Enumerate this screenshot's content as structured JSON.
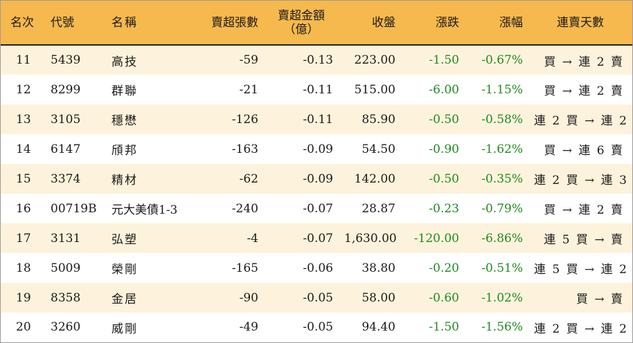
{
  "columns": {
    "rank": "名次",
    "code": "代號",
    "name": "名稱",
    "net_sell_lots": "賣超張數",
    "net_sell_amount": "賣超金額",
    "net_sell_amount_unit": "（億）",
    "close": "收盤",
    "change": "漲跌",
    "change_pct": "漲幅",
    "streak": "連賣天數"
  },
  "rows": [
    {
      "rank": "11",
      "code": "5439",
      "name": "高技",
      "lots": "-59",
      "amount": "-0.13",
      "close": "223.00",
      "change": "-1.50",
      "pct": "-0.67%",
      "streak": "買 → 連 2 賣"
    },
    {
      "rank": "12",
      "code": "8299",
      "name": "群聯",
      "lots": "-21",
      "amount": "-0.11",
      "close": "515.00",
      "change": "-6.00",
      "pct": "-1.15%",
      "streak": "買 → 連 2 賣"
    },
    {
      "rank": "13",
      "code": "3105",
      "name": "穩懋",
      "lots": "-126",
      "amount": "-0.11",
      "close": "85.90",
      "change": "-0.50",
      "pct": "-0.58%",
      "streak": "連 2 買 → 連 2 賣"
    },
    {
      "rank": "14",
      "code": "6147",
      "name": "頎邦",
      "lots": "-163",
      "amount": "-0.09",
      "close": "54.50",
      "change": "-0.90",
      "pct": "-1.62%",
      "streak": "買 → 連 6 賣"
    },
    {
      "rank": "15",
      "code": "3374",
      "name": "精材",
      "lots": "-62",
      "amount": "-0.09",
      "close": "142.00",
      "change": "-0.50",
      "pct": "-0.35%",
      "streak": "連 2 買 → 連 3 賣"
    },
    {
      "rank": "16",
      "code": "00719B",
      "name": "元大美債1-3",
      "lots": "-240",
      "amount": "-0.07",
      "close": "28.87",
      "change": "-0.23",
      "pct": "-0.79%",
      "streak": "買 → 連 2 賣"
    },
    {
      "rank": "17",
      "code": "3131",
      "name": "弘塑",
      "lots": "-4",
      "amount": "-0.07",
      "close": "1,630.00",
      "change": "-120.00",
      "pct": "-6.86%",
      "streak": "連 5 買 → 賣"
    },
    {
      "rank": "18",
      "code": "5009",
      "name": "榮剛",
      "lots": "-165",
      "amount": "-0.06",
      "close": "38.80",
      "change": "-0.20",
      "pct": "-0.51%",
      "streak": "連 5 買 → 連 2 賣"
    },
    {
      "rank": "19",
      "code": "8358",
      "name": "金居",
      "lots": "-90",
      "amount": "-0.05",
      "close": "58.00",
      "change": "-0.60",
      "pct": "-1.02%",
      "streak": "買 → 賣"
    },
    {
      "rank": "20",
      "code": "3260",
      "name": "威剛",
      "lots": "-49",
      "amount": "-0.05",
      "close": "94.40",
      "change": "-1.50",
      "pct": "-1.56%",
      "streak": "連 2 買 → 連 2 賣"
    }
  ],
  "colors": {
    "header_bg": "#f6b94e",
    "odd_row_bg": "#fdf3dc",
    "even_row_bg": "#ffffff",
    "down_color": "#1f8a1f"
  }
}
